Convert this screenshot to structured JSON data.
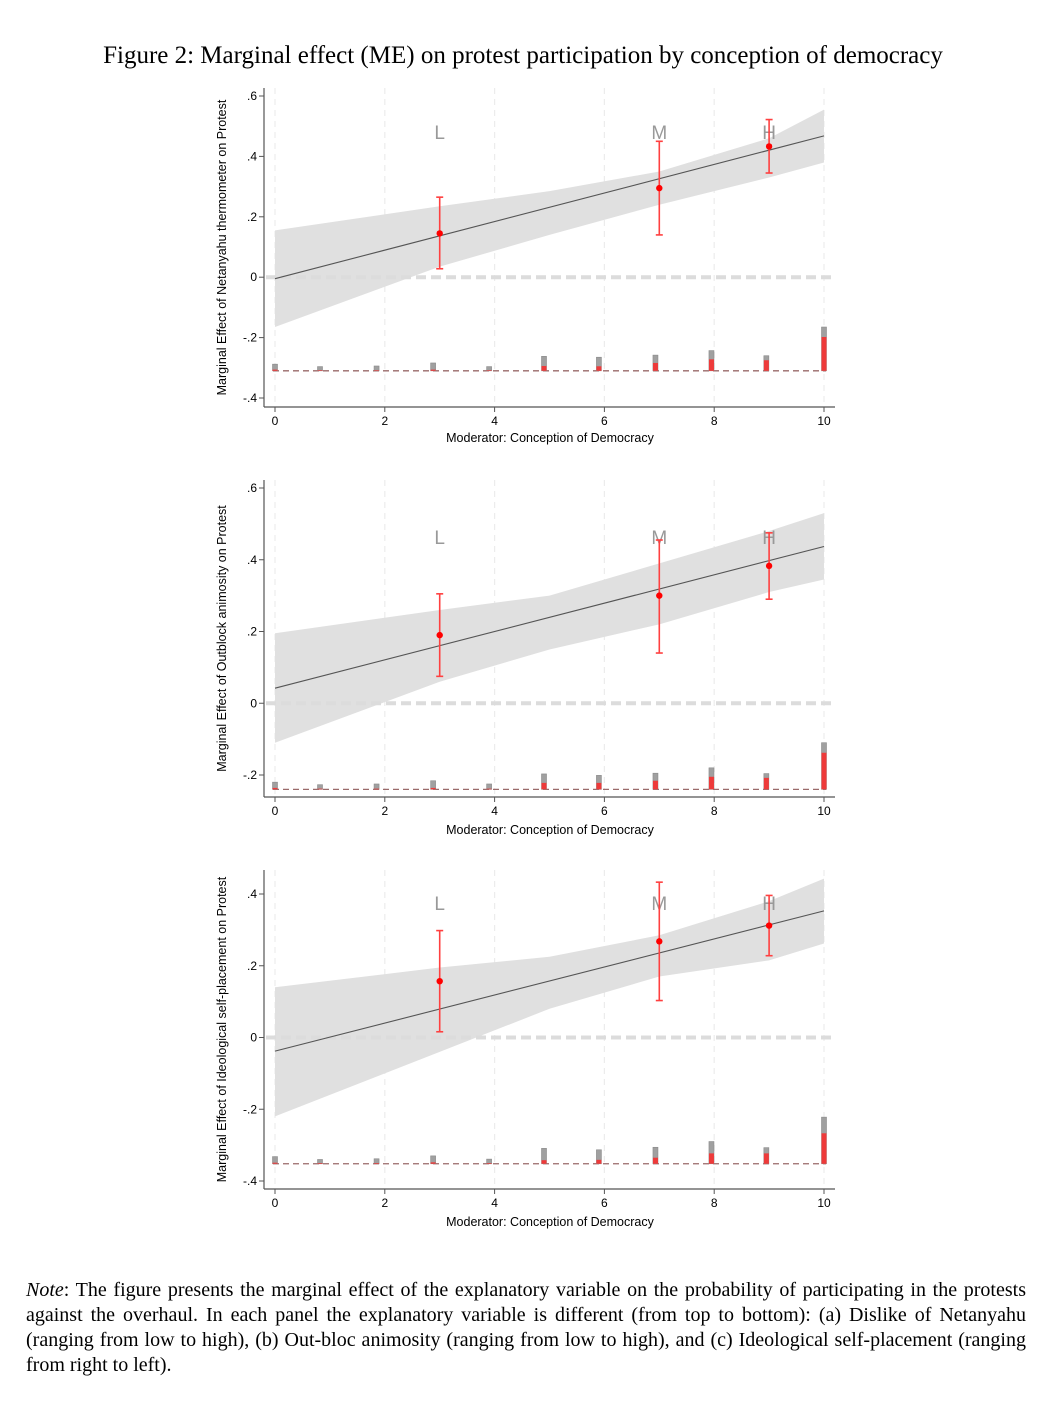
{
  "title": "Figure 2: Marginal effect (ME) on protest participation by conception of democracy",
  "note": {
    "label": "Note",
    "text": ": The figure presents the marginal effect of the explanatory variable on the probability of participating in the protests against the overhaul. In each panel the explanatory variable is different (from top to bottom): (a) Dislike of Netanyahu (ranging from low to high), (b) Out-bloc animosity (ranging from low to high), and (c) Ideological self-placement (ranging from right to left)."
  },
  "colors": {
    "ci_band": "#e0e0e0",
    "line": "#555555",
    "point": "#ff0000",
    "errorbar": "#ff4040",
    "hist_gray": "#a0a0a0",
    "hist_red": "#ee3a3a",
    "zero_line": "#dcdcdc",
    "bin_labels": "#999999"
  },
  "chart_data": [
    {
      "type": "line",
      "title": "",
      "xlabel": "Moderator: Conception of Democracy",
      "ylabel": "Marginal Effect of Netanyahu thermometer on Protest",
      "xlim": [
        0,
        10
      ],
      "ylim": [
        -0.4,
        0.6
      ],
      "xticks": [
        "0",
        "2",
        "4",
        "6",
        "8",
        "10"
      ],
      "yticks": [
        "-.4",
        "-.2",
        "0",
        ".2",
        ".4",
        ".6"
      ],
      "ytick_values": [
        -0.4,
        -0.2,
        0,
        0.2,
        0.4,
        0.6
      ],
      "line": {
        "x": [
          0,
          10
        ],
        "y": [
          -0.005,
          0.468
        ]
      },
      "ci": {
        "x": [
          0,
          3,
          5,
          7,
          9,
          10
        ],
        "lower": [
          -0.165,
          0.035,
          0.14,
          0.24,
          0.33,
          0.38
        ],
        "upper": [
          0.155,
          0.235,
          0.285,
          0.35,
          0.46,
          0.555
        ]
      },
      "binned": [
        {
          "label": "L",
          "x": 3,
          "y": 0.145,
          "lo": 0.028,
          "hi": 0.265
        },
        {
          "label": "M",
          "x": 7,
          "y": 0.295,
          "lo": 0.14,
          "hi": 0.45
        },
        {
          "label": "H",
          "x": 9,
          "y": 0.433,
          "lo": 0.345,
          "hi": 0.522
        }
      ],
      "hist_baseline": -0.31,
      "histogram": [
        {
          "x": 0,
          "gray": 0.022,
          "red": 0.004
        },
        {
          "x": 0.82,
          "gray": 0.014,
          "red": 0.002
        },
        {
          "x": 1.85,
          "gray": 0.016,
          "red": 0.002
        },
        {
          "x": 2.88,
          "gray": 0.026,
          "red": 0.004
        },
        {
          "x": 3.9,
          "gray": 0.014,
          "red": 0.002
        },
        {
          "x": 4.9,
          "gray": 0.048,
          "red": 0.016
        },
        {
          "x": 5.9,
          "gray": 0.045,
          "red": 0.015
        },
        {
          "x": 6.93,
          "gray": 0.052,
          "red": 0.026
        },
        {
          "x": 7.95,
          "gray": 0.067,
          "red": 0.038
        },
        {
          "x": 8.95,
          "gray": 0.05,
          "red": 0.035
        },
        {
          "x": 10,
          "gray": 0.145,
          "red": 0.112
        }
      ]
    },
    {
      "type": "line",
      "title": "",
      "xlabel": "Moderator: Conception of Democracy",
      "ylabel": "Marginal Effect of Outblock animosity on Protest",
      "xlim": [
        0,
        10
      ],
      "ylim": [
        -0.25,
        0.6
      ],
      "xticks": [
        "0",
        "2",
        "4",
        "6",
        "8",
        "10"
      ],
      "yticks": [
        "-.2",
        "0",
        ".2",
        ".4",
        ".6"
      ],
      "ytick_values": [
        -0.2,
        0,
        0.2,
        0.4,
        0.6
      ],
      "line": {
        "x": [
          0,
          10
        ],
        "y": [
          0.042,
          0.437
        ]
      },
      "ci": {
        "x": [
          0,
          3,
          5,
          7,
          9,
          10
        ],
        "lower": [
          -0.11,
          0.06,
          0.15,
          0.22,
          0.31,
          0.345
        ],
        "upper": [
          0.195,
          0.26,
          0.3,
          0.39,
          0.48,
          0.53
        ]
      },
      "binned": [
        {
          "label": "L",
          "x": 3,
          "y": 0.19,
          "lo": 0.075,
          "hi": 0.305
        },
        {
          "label": "M",
          "x": 7,
          "y": 0.3,
          "lo": 0.14,
          "hi": 0.455
        },
        {
          "label": "H",
          "x": 9,
          "y": 0.383,
          "lo": 0.29,
          "hi": 0.475
        }
      ],
      "hist_baseline": -0.24,
      "histogram": [
        {
          "x": 0,
          "gray": 0.02,
          "red": 0.004
        },
        {
          "x": 0.82,
          "gray": 0.013,
          "red": 0.002
        },
        {
          "x": 1.85,
          "gray": 0.015,
          "red": 0.002
        },
        {
          "x": 2.88,
          "gray": 0.024,
          "red": 0.004
        },
        {
          "x": 3.9,
          "gray": 0.015,
          "red": 0.002
        },
        {
          "x": 4.9,
          "gray": 0.043,
          "red": 0.018
        },
        {
          "x": 5.9,
          "gray": 0.039,
          "red": 0.018
        },
        {
          "x": 6.93,
          "gray": 0.045,
          "red": 0.024
        },
        {
          "x": 7.95,
          "gray": 0.06,
          "red": 0.035
        },
        {
          "x": 8.95,
          "gray": 0.044,
          "red": 0.032
        },
        {
          "x": 10,
          "gray": 0.13,
          "red": 0.102
        }
      ]
    },
    {
      "type": "line",
      "title": "",
      "xlabel": "Moderator: Conception of Democracy",
      "ylabel": "Marginal Effect of Ideological self-placement on Protest",
      "xlim": [
        0,
        10
      ],
      "ylim": [
        -0.42,
        0.46
      ],
      "xticks": [
        "0",
        "2",
        "4",
        "6",
        "8",
        "10"
      ],
      "yticks": [
        "-.4",
        "-.2",
        "0",
        ".2",
        ".4"
      ],
      "ytick_values": [
        -0.4,
        -0.2,
        0,
        0.2,
        0.4
      ],
      "line": {
        "x": [
          0,
          10
        ],
        "y": [
          -0.038,
          0.353
        ]
      },
      "ci": {
        "x": [
          0,
          3,
          5,
          7,
          9,
          10
        ],
        "lower": [
          -0.22,
          -0.04,
          0.08,
          0.17,
          0.215,
          0.262
        ],
        "upper": [
          0.14,
          0.195,
          0.225,
          0.285,
          0.38,
          0.443
        ]
      },
      "binned": [
        {
          "label": "L",
          "x": 3,
          "y": 0.157,
          "lo": 0.016,
          "hi": 0.298
        },
        {
          "label": "M",
          "x": 7,
          "y": 0.268,
          "lo": 0.103,
          "hi": 0.433
        },
        {
          "label": "H",
          "x": 9,
          "y": 0.312,
          "lo": 0.228,
          "hi": 0.396
        }
      ],
      "hist_baseline": -0.352,
      "histogram": [
        {
          "x": 0,
          "gray": 0.02,
          "red": 0.003
        },
        {
          "x": 0.82,
          "gray": 0.012,
          "red": 0.002
        },
        {
          "x": 1.85,
          "gray": 0.014,
          "red": 0.002
        },
        {
          "x": 2.88,
          "gray": 0.022,
          "red": 0.004
        },
        {
          "x": 3.9,
          "gray": 0.013,
          "red": 0.002
        },
        {
          "x": 4.9,
          "gray": 0.043,
          "red": 0.01
        },
        {
          "x": 5.9,
          "gray": 0.039,
          "red": 0.011
        },
        {
          "x": 6.93,
          "gray": 0.046,
          "red": 0.017
        },
        {
          "x": 7.95,
          "gray": 0.062,
          "red": 0.029
        },
        {
          "x": 8.95,
          "gray": 0.045,
          "red": 0.029
        },
        {
          "x": 10,
          "gray": 0.13,
          "red": 0.085
        }
      ]
    }
  ]
}
